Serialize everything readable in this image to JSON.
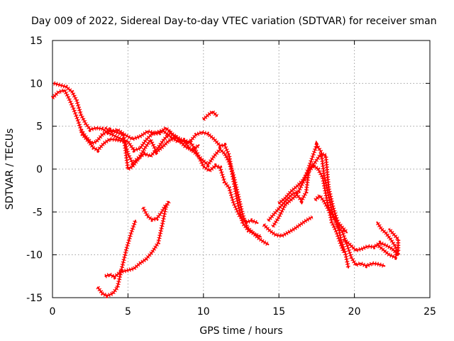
{
  "chart_data": {
    "type": "scatter",
    "title": "Day 009 of 2022, Sidereal Day-to-day VTEC variation (SDTVAR) for receiver sman",
    "xlabel": "GPS time / hours",
    "ylabel": "SDTVAR / TECUs",
    "xlim": [
      0,
      25
    ],
    "ylim": [
      -15,
      15
    ],
    "x_ticks": [
      0,
      5,
      10,
      15,
      20,
      25
    ],
    "y_ticks": [
      -15,
      -10,
      -5,
      0,
      5,
      10,
      15
    ],
    "grid": true,
    "marker": "+",
    "color": "#ff0000",
    "series": [
      {
        "name": "arc-1",
        "points": [
          [
            0.0,
            8.3
          ],
          [
            0.4,
            9.0
          ],
          [
            0.8,
            9.2
          ],
          [
            1.1,
            8.2
          ],
          [
            1.4,
            7.0
          ],
          [
            1.7,
            5.6
          ],
          [
            2.0,
            4.0
          ],
          [
            2.4,
            3.2
          ],
          [
            2.7,
            2.5
          ],
          [
            3.0,
            2.2
          ],
          [
            3.4,
            3.0
          ],
          [
            3.8,
            3.5
          ],
          [
            4.3,
            3.4
          ],
          [
            4.8,
            3.2
          ],
          [
            5.0,
            1.8
          ],
          [
            5.3,
            0.7
          ],
          [
            5.7,
            1.3
          ],
          [
            6.1,
            1.8
          ],
          [
            6.5,
            1.5
          ],
          [
            7.0,
            2.5
          ],
          [
            7.4,
            3.5
          ],
          [
            7.8,
            4.2
          ],
          [
            8.3,
            3.5
          ],
          [
            8.8,
            2.6
          ],
          [
            9.3,
            2.2
          ],
          [
            9.7,
            2.8
          ]
        ]
      },
      {
        "name": "arc-2",
        "points": [
          [
            0.1,
            10.0
          ],
          [
            0.5,
            9.8
          ],
          [
            0.9,
            9.6
          ],
          [
            1.3,
            9.0
          ],
          [
            1.6,
            8.0
          ],
          [
            1.9,
            6.3
          ],
          [
            2.2,
            5.3
          ],
          [
            2.5,
            4.6
          ],
          [
            2.9,
            4.8
          ],
          [
            3.3,
            4.7
          ],
          [
            3.7,
            4.2
          ],
          [
            4.2,
            3.8
          ],
          [
            4.6,
            3.5
          ],
          [
            5.0,
            3.2
          ],
          [
            5.4,
            2.2
          ],
          [
            5.8,
            2.4
          ],
          [
            6.2,
            3.4
          ],
          [
            6.6,
            4.1
          ],
          [
            7.1,
            4.2
          ],
          [
            7.5,
            4.8
          ],
          [
            8.0,
            4.0
          ],
          [
            8.5,
            3.4
          ],
          [
            9.0,
            3.0
          ],
          [
            9.5,
            4.0
          ],
          [
            9.9,
            4.3
          ],
          [
            10.3,
            4.1
          ],
          [
            10.7,
            3.5
          ],
          [
            11.1,
            2.7
          ],
          [
            11.4,
            2.8
          ],
          [
            11.7,
            1.6
          ],
          [
            12.0,
            -1.5
          ],
          [
            12.3,
            -4.2
          ],
          [
            12.6,
            -6.3
          ],
          [
            13.0,
            -7.2
          ],
          [
            13.4,
            -7.6
          ],
          [
            13.8,
            -7.9
          ]
        ]
      },
      {
        "name": "arc-3",
        "points": [
          [
            1.9,
            4.5
          ],
          [
            2.2,
            3.8
          ],
          [
            2.6,
            3.0
          ],
          [
            2.9,
            3.2
          ],
          [
            3.3,
            4.0
          ],
          [
            3.8,
            4.6
          ],
          [
            4.2,
            4.3
          ],
          [
            4.7,
            4.0
          ],
          [
            5.0,
            0.0
          ],
          [
            5.3,
            0.3
          ],
          [
            5.7,
            1.2
          ],
          [
            6.1,
            2.4
          ],
          [
            6.5,
            3.4
          ],
          [
            6.9,
            2.0
          ],
          [
            7.3,
            2.6
          ],
          [
            7.7,
            3.3
          ],
          [
            8.2,
            3.7
          ],
          [
            8.7,
            3.3
          ],
          [
            9.1,
            2.4
          ],
          [
            9.5,
            1.8
          ],
          [
            9.9,
            1.1
          ],
          [
            10.3,
            0.5
          ],
          [
            10.7,
            1.5
          ],
          [
            11.1,
            2.3
          ],
          [
            11.4,
            1.8
          ],
          [
            11.7,
            0.8
          ],
          [
            12.0,
            -0.8
          ],
          [
            12.3,
            -3.0
          ],
          [
            12.6,
            -5.3
          ],
          [
            12.9,
            -6.8
          ],
          [
            13.2,
            -7.3
          ],
          [
            13.6,
            -8.0
          ],
          [
            14.0,
            -8.5
          ],
          [
            14.3,
            -8.8
          ]
        ]
      },
      {
        "name": "arc-4",
        "points": [
          [
            3.5,
            4.8
          ],
          [
            3.9,
            4.3
          ],
          [
            4.3,
            4.6
          ],
          [
            4.8,
            4.0
          ],
          [
            5.3,
            3.5
          ],
          [
            5.8,
            3.8
          ],
          [
            6.3,
            4.4
          ],
          [
            6.8,
            4.2
          ],
          [
            7.3,
            4.5
          ],
          [
            7.8,
            3.8
          ],
          [
            8.3,
            3.2
          ],
          [
            8.7,
            3.4
          ],
          [
            9.2,
            3.0
          ],
          [
            9.6,
            1.8
          ],
          [
            10.0,
            0.3
          ],
          [
            10.4,
            -0.2
          ],
          [
            10.8,
            0.4
          ],
          [
            11.1,
            0.2
          ],
          [
            11.4,
            -1.5
          ],
          [
            11.7,
            -2.2
          ],
          [
            12.0,
            -4.0
          ],
          [
            12.4,
            -5.5
          ],
          [
            12.8,
            -6.2
          ],
          [
            13.2,
            -6.0
          ],
          [
            13.6,
            -6.3
          ]
        ]
      },
      {
        "name": "arc-5",
        "points": [
          [
            10.0,
            5.8
          ],
          [
            10.3,
            6.3
          ],
          [
            10.6,
            6.7
          ],
          [
            10.9,
            6.2
          ]
        ]
      },
      {
        "name": "arc-6",
        "points": [
          [
            3.0,
            -13.8
          ],
          [
            3.3,
            -14.5
          ],
          [
            3.6,
            -14.8
          ],
          [
            4.0,
            -14.5
          ],
          [
            4.3,
            -13.8
          ],
          [
            4.6,
            -11.5
          ],
          [
            4.9,
            -9.3
          ],
          [
            5.2,
            -7.5
          ],
          [
            5.5,
            -6.0
          ]
        ]
      },
      {
        "name": "arc-7",
        "points": [
          [
            3.5,
            -12.5
          ],
          [
            3.8,
            -12.3
          ],
          [
            4.1,
            -12.6
          ],
          [
            4.5,
            -12.0
          ],
          [
            5.0,
            -11.8
          ],
          [
            5.4,
            -11.6
          ],
          [
            5.8,
            -11.0
          ],
          [
            6.2,
            -10.5
          ],
          [
            6.6,
            -9.7
          ],
          [
            7.0,
            -8.6
          ],
          [
            7.3,
            -6.3
          ],
          [
            7.5,
            -4.5
          ],
          [
            7.7,
            -3.8
          ]
        ]
      },
      {
        "name": "arc-8",
        "points": [
          [
            6.0,
            -4.5
          ],
          [
            6.3,
            -5.5
          ],
          [
            6.6,
            -5.9
          ],
          [
            6.9,
            -5.8
          ],
          [
            7.2,
            -5.1
          ],
          [
            7.5,
            -4.2
          ]
        ]
      },
      {
        "name": "arc-9",
        "points": [
          [
            14.0,
            -6.5
          ],
          [
            14.4,
            -7.2
          ],
          [
            14.8,
            -7.7
          ],
          [
            15.2,
            -7.8
          ],
          [
            15.6,
            -7.4
          ],
          [
            16.0,
            -7.0
          ],
          [
            16.4,
            -6.5
          ],
          [
            16.8,
            -6.0
          ],
          [
            17.2,
            -5.6
          ]
        ]
      },
      {
        "name": "arc-10",
        "points": [
          [
            14.3,
            -6.0
          ],
          [
            14.7,
            -5.2
          ],
          [
            15.1,
            -4.4
          ],
          [
            15.5,
            -3.6
          ],
          [
            15.9,
            -2.9
          ],
          [
            16.3,
            -2.6
          ],
          [
            16.7,
            -1.2
          ],
          [
            17.0,
            0.3
          ],
          [
            17.3,
            1.8
          ],
          [
            17.5,
            2.8
          ],
          [
            17.8,
            2.0
          ],
          [
            18.0,
            -0.8
          ],
          [
            18.3,
            -3.2
          ],
          [
            18.6,
            -5.5
          ],
          [
            18.9,
            -6.8
          ],
          [
            19.2,
            -7.3
          ],
          [
            19.5,
            -8.8
          ],
          [
            19.8,
            -10.3
          ],
          [
            20.1,
            -11.2
          ],
          [
            20.4,
            -11.0
          ],
          [
            20.8,
            -11.3
          ],
          [
            21.2,
            -11.0
          ],
          [
            21.6,
            -11.1
          ],
          [
            22.0,
            -11.3
          ]
        ]
      },
      {
        "name": "arc-11",
        "points": [
          [
            14.6,
            -6.7
          ],
          [
            15.0,
            -5.6
          ],
          [
            15.4,
            -4.2
          ],
          [
            15.8,
            -3.6
          ],
          [
            16.2,
            -3.0
          ],
          [
            16.5,
            -3.7
          ],
          [
            16.8,
            -2.7
          ],
          [
            17.0,
            0.0
          ],
          [
            17.4,
            0.8
          ],
          [
            17.8,
            1.8
          ],
          [
            18.1,
            1.6
          ],
          [
            18.3,
            -2.2
          ],
          [
            18.6,
            -4.5
          ],
          [
            18.9,
            -6.2
          ],
          [
            19.1,
            -8.2
          ],
          [
            19.4,
            -9.8
          ],
          [
            19.6,
            -11.5
          ]
        ]
      },
      {
        "name": "arc-12",
        "points": [
          [
            15.0,
            -4.0
          ],
          [
            15.4,
            -3.4
          ],
          [
            15.8,
            -2.6
          ],
          [
            16.2,
            -2.0
          ],
          [
            16.6,
            -1.3
          ],
          [
            17.0,
            -0.2
          ],
          [
            17.3,
            0.4
          ],
          [
            17.6,
            0.0
          ],
          [
            17.9,
            -1.0
          ],
          [
            18.2,
            -3.8
          ],
          [
            18.5,
            -6.2
          ],
          [
            18.8,
            -7.3
          ],
          [
            19.1,
            -8.8
          ],
          [
            19.3,
            -9.7
          ]
        ]
      },
      {
        "name": "arc-13",
        "points": [
          [
            17.4,
            -3.6
          ],
          [
            17.7,
            -3.1
          ],
          [
            18.0,
            -3.8
          ],
          [
            18.3,
            -4.8
          ],
          [
            18.6,
            -5.4
          ],
          [
            18.9,
            -6.2
          ],
          [
            19.2,
            -6.8
          ],
          [
            19.5,
            -7.4
          ]
        ]
      },
      {
        "name": "arc-14",
        "points": [
          [
            19.3,
            -8.2
          ],
          [
            19.7,
            -8.8
          ],
          [
            20.1,
            -9.5
          ],
          [
            20.5,
            -9.3
          ],
          [
            20.9,
            -9.0
          ],
          [
            21.3,
            -9.1
          ],
          [
            21.7,
            -8.6
          ],
          [
            22.1,
            -8.9
          ],
          [
            22.5,
            -9.3
          ],
          [
            22.9,
            -10.0
          ],
          [
            22.7,
            -9.0
          ],
          [
            22.4,
            -8.2
          ],
          [
            22.1,
            -7.5
          ],
          [
            21.8,
            -7.0
          ],
          [
            21.5,
            -6.2
          ]
        ]
      },
      {
        "name": "arc-15",
        "points": [
          [
            21.5,
            -8.8
          ],
          [
            21.9,
            -9.4
          ],
          [
            22.3,
            -10.0
          ],
          [
            22.7,
            -10.3
          ],
          [
            22.9,
            -9.6
          ],
          [
            22.9,
            -8.2
          ],
          [
            22.6,
            -7.6
          ],
          [
            22.3,
            -7.0
          ]
        ]
      }
    ]
  }
}
